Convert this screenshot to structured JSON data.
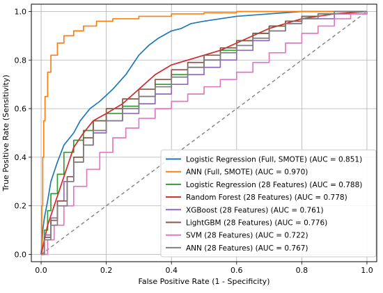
{
  "chart_data": {
    "type": "line",
    "title": "",
    "xlabel": "False Positive Rate (1 - Specificity)",
    "ylabel": "True Positive Rate (Sensitivity)",
    "xlim": [
      -0.03,
      1.03
    ],
    "ylim": [
      -0.03,
      1.03
    ],
    "xticks": [
      "0.0",
      "0.2",
      "0.4",
      "0.6",
      "0.8",
      "1.0"
    ],
    "yticks": [
      "0.0",
      "0.2",
      "0.4",
      "0.6",
      "0.8",
      "1.0"
    ],
    "grid": true,
    "legend_position": "lower-right",
    "diagonal": {
      "x": [
        0,
        1
      ],
      "y": [
        0,
        1
      ],
      "color": "#808080",
      "style": "dashed"
    },
    "series": [
      {
        "name": "Logistic Regression (Full, SMOTE) (AUC = 0.851)",
        "color": "#1f77b4",
        "x": [
          0,
          0.003,
          0.005,
          0.01,
          0.02,
          0.03,
          0.05,
          0.07,
          0.1,
          0.12,
          0.15,
          0.18,
          0.22,
          0.26,
          0.3,
          0.33,
          0.36,
          0.4,
          0.43,
          0.46,
          0.5,
          0.55,
          0.6,
          0.7,
          0.8,
          0.9,
          1.0
        ],
        "y": [
          0,
          0.05,
          0.1,
          0.15,
          0.22,
          0.3,
          0.38,
          0.45,
          0.5,
          0.55,
          0.6,
          0.63,
          0.68,
          0.74,
          0.82,
          0.86,
          0.89,
          0.92,
          0.93,
          0.95,
          0.96,
          0.97,
          0.98,
          0.99,
          1.0,
          1.0,
          1.0
        ]
      },
      {
        "name": "ANN (Full, SMOTE) (AUC = 0.970)",
        "color": "#ff7f0e",
        "x": [
          0,
          0.002,
          0.005,
          0.008,
          0.012,
          0.02,
          0.03,
          0.05,
          0.07,
          0.1,
          0.13,
          0.17,
          0.22,
          0.3,
          0.4,
          0.5,
          0.6,
          0.7,
          0.8,
          1.0
        ],
        "y": [
          0,
          0.2,
          0.4,
          0.55,
          0.65,
          0.75,
          0.82,
          0.87,
          0.9,
          0.92,
          0.94,
          0.96,
          0.97,
          0.98,
          0.99,
          0.995,
          1.0,
          1.0,
          1.0,
          1.0
        ],
        "step": true
      },
      {
        "name": "Logistic Regression (28 Features) (AUC = 0.788)",
        "color": "#2ca02c",
        "x": [
          0,
          0.01,
          0.02,
          0.03,
          0.05,
          0.07,
          0.1,
          0.13,
          0.16,
          0.2,
          0.25,
          0.3,
          0.35,
          0.4,
          0.45,
          0.5,
          0.55,
          0.6,
          0.65,
          0.7,
          0.75,
          0.8,
          0.85,
          0.9,
          1.0
        ],
        "y": [
          0,
          0.1,
          0.18,
          0.25,
          0.33,
          0.42,
          0.47,
          0.51,
          0.55,
          0.58,
          0.61,
          0.65,
          0.7,
          0.74,
          0.77,
          0.8,
          0.84,
          0.88,
          0.91,
          0.94,
          0.96,
          0.98,
          0.99,
          1.0,
          1.0
        ],
        "step": true
      },
      {
        "name": "Random Forest (28 Features) (AUC = 0.778)",
        "color": "#d62728",
        "x": [
          0,
          0.01,
          0.02,
          0.04,
          0.06,
          0.08,
          0.1,
          0.13,
          0.16,
          0.2,
          0.25,
          0.3,
          0.35,
          0.4,
          0.45,
          0.5,
          0.55,
          0.6,
          0.65,
          0.7,
          0.75,
          0.8,
          0.9,
          1.0
        ],
        "y": [
          0,
          0.06,
          0.12,
          0.2,
          0.28,
          0.36,
          0.44,
          0.5,
          0.55,
          0.58,
          0.62,
          0.68,
          0.74,
          0.78,
          0.8,
          0.82,
          0.84,
          0.87,
          0.9,
          0.93,
          0.95,
          0.97,
          0.99,
          1.0
        ]
      },
      {
        "name": "XGBoost (28 Features) (AUC = 0.761)",
        "color": "#9467bd",
        "x": [
          0,
          0.01,
          0.03,
          0.05,
          0.07,
          0.1,
          0.13,
          0.16,
          0.2,
          0.25,
          0.3,
          0.35,
          0.4,
          0.45,
          0.5,
          0.55,
          0.6,
          0.65,
          0.7,
          0.75,
          0.8,
          0.9,
          1.0
        ],
        "y": [
          0,
          0.08,
          0.15,
          0.22,
          0.3,
          0.38,
          0.45,
          0.5,
          0.55,
          0.58,
          0.62,
          0.66,
          0.7,
          0.74,
          0.77,
          0.8,
          0.84,
          0.88,
          0.92,
          0.95,
          0.97,
          0.99,
          1.0
        ],
        "step": true
      },
      {
        "name": "LightGBM (28 Features) (AUC = 0.776)",
        "color": "#8c564b",
        "x": [
          0,
          0.01,
          0.03,
          0.05,
          0.08,
          0.1,
          0.13,
          0.16,
          0.2,
          0.25,
          0.3,
          0.35,
          0.4,
          0.45,
          0.5,
          0.55,
          0.6,
          0.65,
          0.7,
          0.75,
          0.8,
          0.85,
          0.9,
          1.0
        ],
        "y": [
          0,
          0.07,
          0.14,
          0.22,
          0.32,
          0.4,
          0.48,
          0.55,
          0.6,
          0.64,
          0.68,
          0.72,
          0.76,
          0.79,
          0.82,
          0.85,
          0.88,
          0.91,
          0.94,
          0.96,
          0.98,
          0.99,
          1.0,
          1.0
        ],
        "step": true
      },
      {
        "name": "SVM (28 Features) (AUC = 0.722)",
        "color": "#e377c2",
        "x": [
          0,
          0.02,
          0.04,
          0.07,
          0.1,
          0.14,
          0.18,
          0.22,
          0.26,
          0.3,
          0.35,
          0.4,
          0.45,
          0.5,
          0.55,
          0.6,
          0.65,
          0.7,
          0.75,
          0.8,
          0.85,
          0.9,
          0.95,
          1.0
        ],
        "y": [
          0,
          0.06,
          0.12,
          0.2,
          0.28,
          0.35,
          0.42,
          0.48,
          0.52,
          0.56,
          0.6,
          0.63,
          0.66,
          0.69,
          0.72,
          0.75,
          0.79,
          0.83,
          0.87,
          0.91,
          0.94,
          0.97,
          0.99,
          1.0
        ],
        "step": true
      },
      {
        "name": "ANN (28 Features) (AUC = 0.767)",
        "color": "#7f7f7f",
        "x": [
          0,
          0.01,
          0.03,
          0.05,
          0.08,
          0.1,
          0.13,
          0.16,
          0.2,
          0.25,
          0.3,
          0.35,
          0.4,
          0.45,
          0.5,
          0.55,
          0.6,
          0.65,
          0.7,
          0.75,
          0.8,
          0.85,
          0.9,
          1.0
        ],
        "y": [
          0,
          0.06,
          0.12,
          0.2,
          0.3,
          0.38,
          0.45,
          0.51,
          0.55,
          0.6,
          0.65,
          0.69,
          0.73,
          0.77,
          0.8,
          0.83,
          0.86,
          0.89,
          0.92,
          0.95,
          0.97,
          0.99,
          1.0,
          1.0
        ],
        "step": true
      }
    ]
  }
}
